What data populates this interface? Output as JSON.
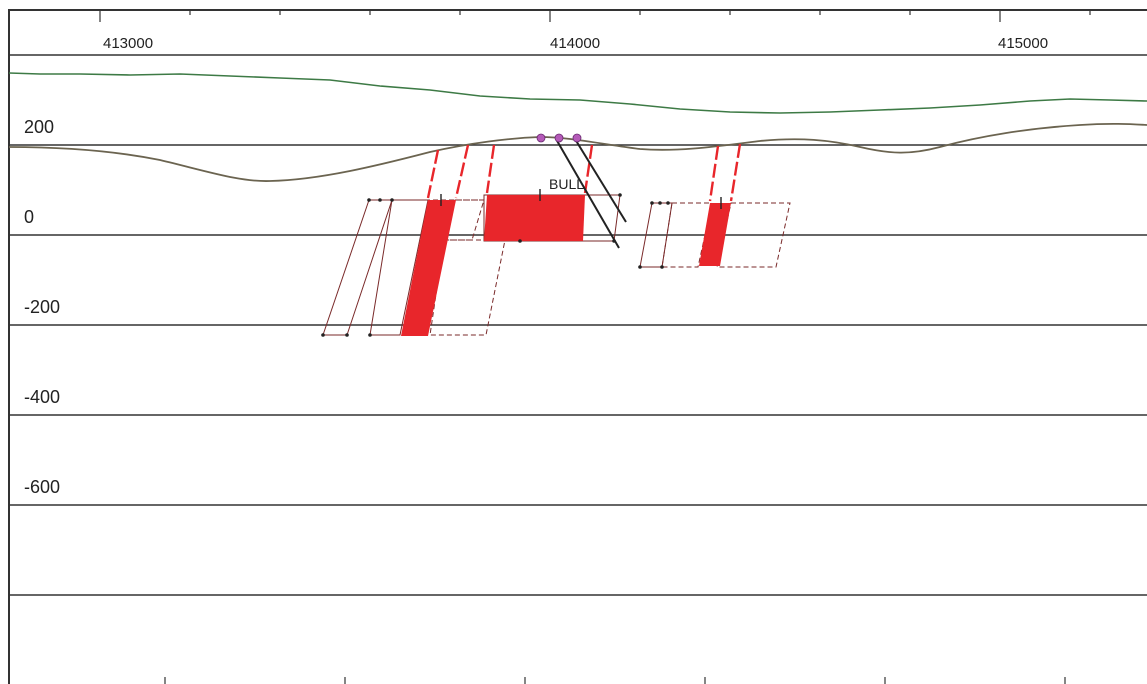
{
  "section": {
    "x_axis": {
      "tick_labels": [
        {
          "value": 413000,
          "text": "413000"
        },
        {
          "value": 414000,
          "text": "414000"
        },
        {
          "value": 415000,
          "text": "415000"
        }
      ]
    },
    "elevation_labels": [
      {
        "value": 200,
        "text": "200"
      },
      {
        "value": 0,
        "text": "0"
      },
      {
        "value": -200,
        "text": "-200"
      },
      {
        "value": -400,
        "text": "-400"
      },
      {
        "value": -600,
        "text": "-600"
      }
    ],
    "target_label": "BULL",
    "colors": {
      "axis": "#333333",
      "grid": "#333333",
      "green_profile": "#3d7a45",
      "topography": "#6b6450",
      "block_fill": "#e8262b",
      "block_outline": "#7a2a2a",
      "drillhole": "#222222",
      "collar": "#b45ab8",
      "red_tick": "#e8262b"
    }
  }
}
